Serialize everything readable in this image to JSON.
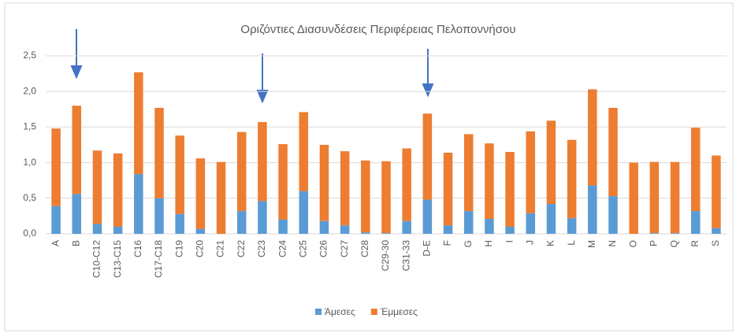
{
  "chart_data": {
    "type": "stacked_bar",
    "title": "Οριζόντιες Διασυνδέσεις Περιφέρειας Πελοποννήσου",
    "categories": [
      "A",
      "B",
      "C10-C12",
      "C13-C15",
      "C16",
      "C17-C18",
      "C19",
      "C20",
      "C21",
      "C22",
      "C23",
      "C24",
      "C25",
      "C26",
      "C27",
      "C28",
      "C29-30",
      "C31-33",
      "D-E",
      "F",
      "G",
      "H",
      "I",
      "J",
      "K",
      "L",
      "M",
      "N",
      "O",
      "P",
      "Q",
      "R",
      "S"
    ],
    "series": [
      {
        "name": "Άμεσες",
        "color": "#5b9bd5",
        "values": [
          0.39,
          0.56,
          0.14,
          0.1,
          0.84,
          0.5,
          0.28,
          0.07,
          0.0,
          0.32,
          0.46,
          0.2,
          0.6,
          0.18,
          0.12,
          0.02,
          0.01,
          0.18,
          0.48,
          0.12,
          0.32,
          0.21,
          0.1,
          0.29,
          0.42,
          0.22,
          0.68,
          0.53,
          0.0,
          0.01,
          0.01,
          0.32,
          0.08
        ]
      },
      {
        "name": "Έμμεσες",
        "color": "#ed7d31",
        "values": [
          1.09,
          1.24,
          1.03,
          1.03,
          1.43,
          1.27,
          1.1,
          0.99,
          1.01,
          1.11,
          1.11,
          1.06,
          1.11,
          1.07,
          1.04,
          1.01,
          1.01,
          1.02,
          1.21,
          1.02,
          1.08,
          1.06,
          1.05,
          1.15,
          1.17,
          1.1,
          1.35,
          1.24,
          1.0,
          1.0,
          1.0,
          1.17,
          1.02
        ]
      }
    ],
    "ylim": [
      0,
      2.5
    ],
    "yticks": [
      {
        "value": 0,
        "label": "0,0"
      },
      {
        "value": 0.5,
        "label": "0,5"
      },
      {
        "value": 1,
        "label": "1,0"
      },
      {
        "value": 1.5,
        "label": "1,5"
      },
      {
        "value": 2,
        "label": "2,0"
      },
      {
        "value": 2.5,
        "label": "2,5"
      }
    ],
    "grid": true,
    "legend": "bottom"
  }
}
